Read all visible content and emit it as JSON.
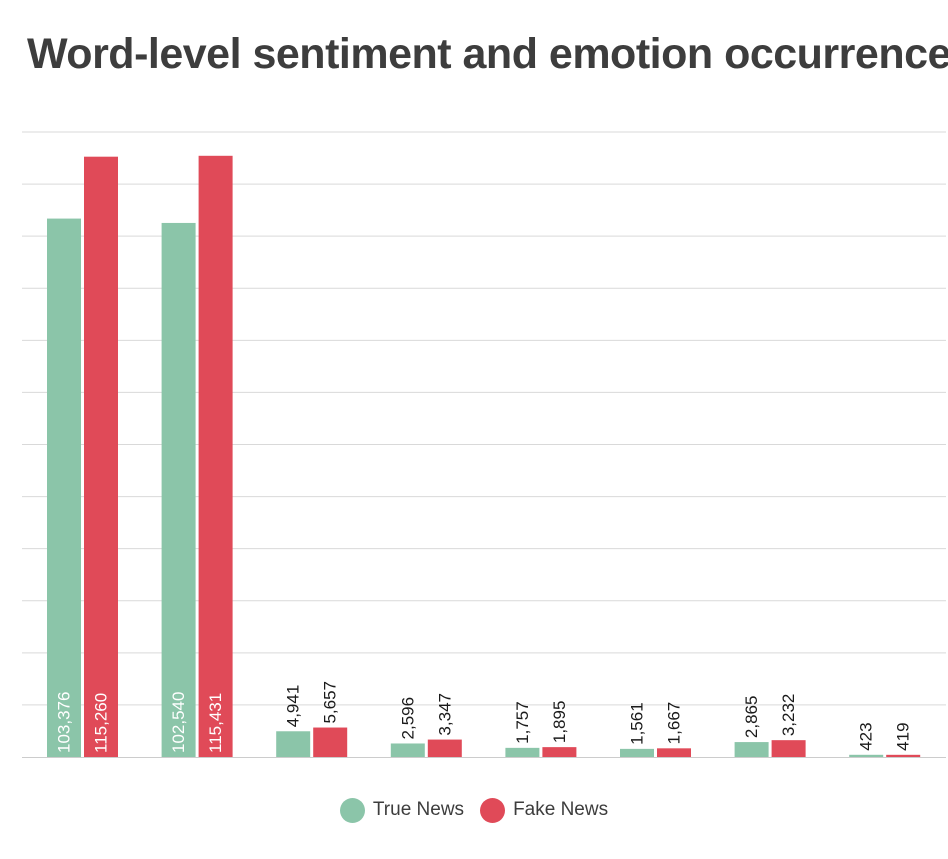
{
  "chart_data": {
    "type": "bar",
    "title": "Word-level sentiment and emotion occurrence",
    "categories": [
      "",
      "",
      "",
      "",
      "",
      "",
      "",
      ""
    ],
    "series": [
      {
        "name": "True News",
        "color": "#8bc5a9",
        "values": [
          103376,
          102540,
          4941,
          2596,
          1757,
          1561,
          2865,
          423
        ]
      },
      {
        "name": "Fake News",
        "color": "#e04a58",
        "values": [
          115260,
          115431,
          5657,
          3347,
          1895,
          1667,
          3232,
          419
        ]
      }
    ],
    "value_labels": [
      [
        "103,376",
        "102,540",
        "4,941",
        "2,596",
        "1,757",
        "1,561",
        "2,865",
        "423"
      ],
      [
        "115,260",
        "115,431",
        "5,657",
        "3,347",
        "1,895",
        "1,667",
        "3,232",
        "419"
      ]
    ],
    "ylim": [
      0,
      120000
    ],
    "grid": true,
    "legend_position": "bottom"
  }
}
